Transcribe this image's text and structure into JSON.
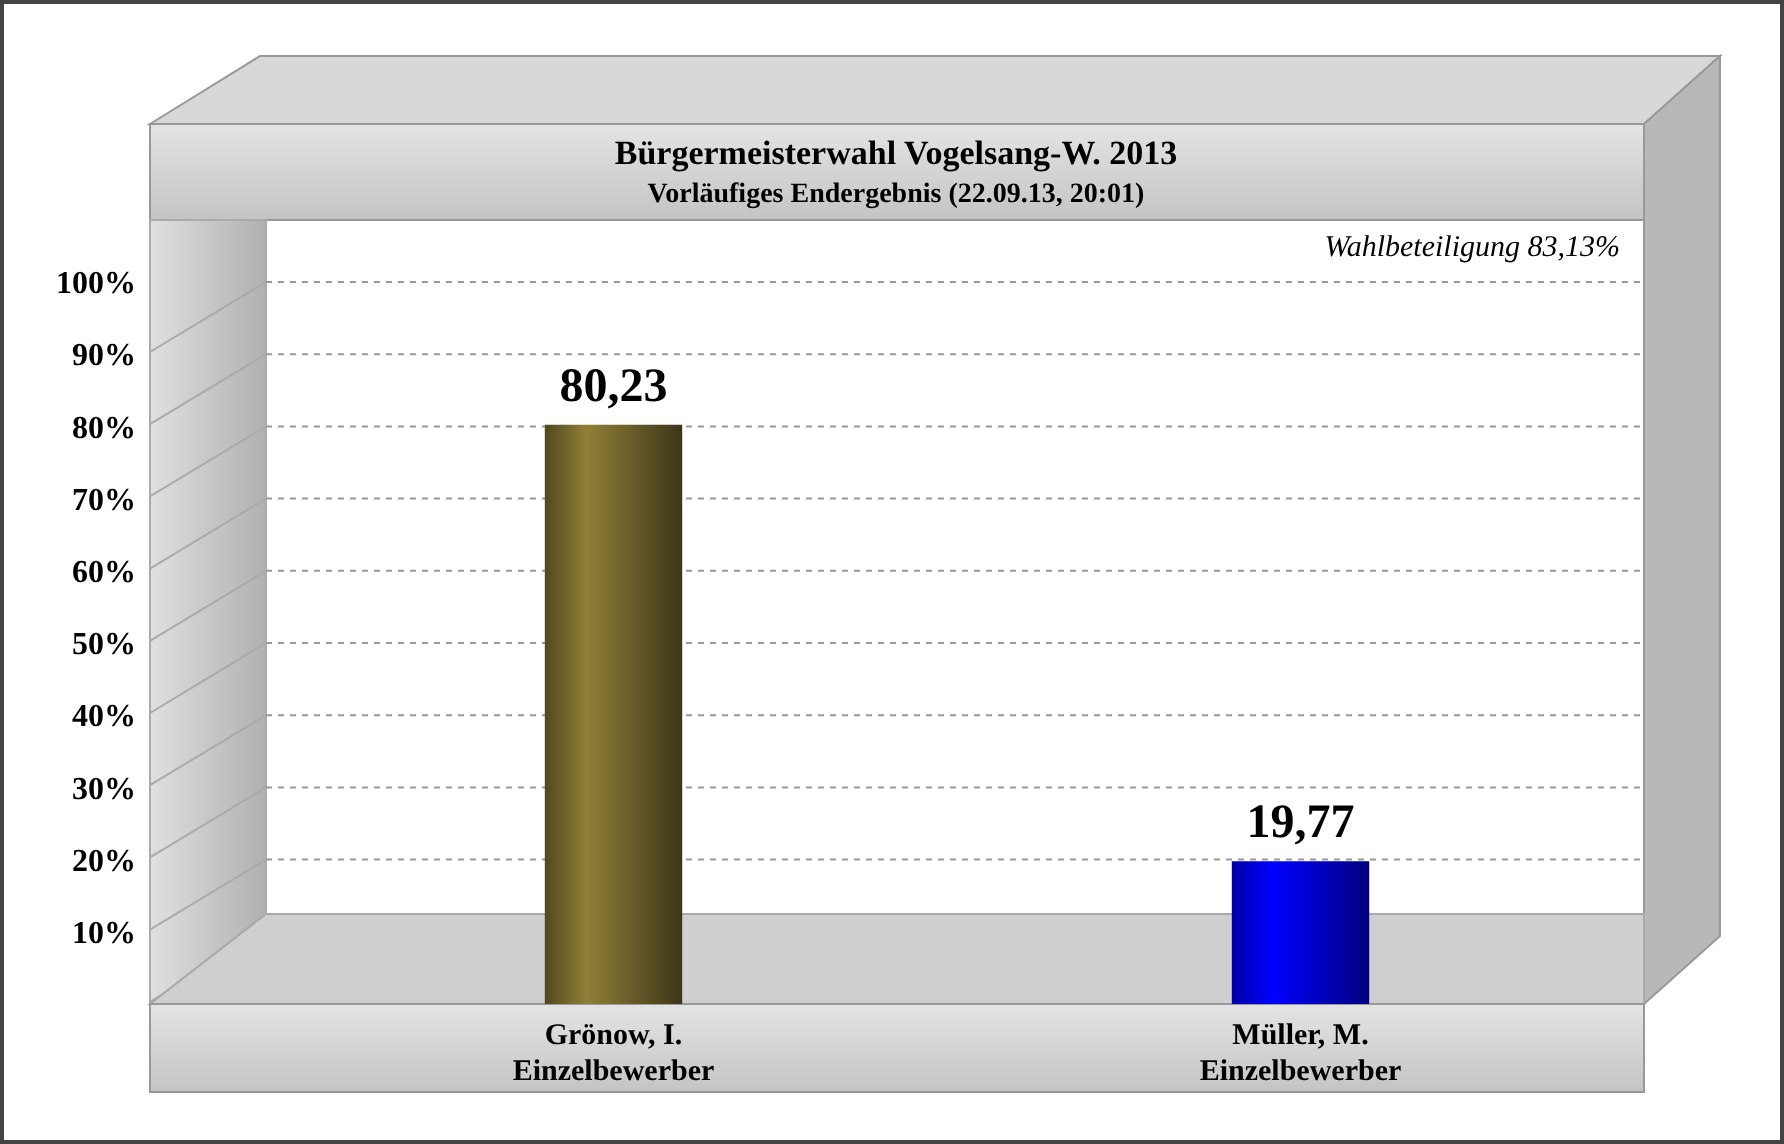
{
  "chart_data": {
    "type": "bar",
    "title": "Bürgermeisterwahl Vogelsang-W. 2013",
    "subtitle": "Vorläufiges Endergebnis (22.09.13, 20:01)",
    "annotations": [
      "Wahlbeteiligung 83,13%"
    ],
    "categories": [
      "Grönow, I.\nEinzelbewerber",
      "Müller, M.\nEinzelbewerber"
    ],
    "values": [
      80.23,
      19.77
    ],
    "colors": [
      "#7d6e30",
      "#0000ff"
    ],
    "value_labels": [
      "80,23",
      "19,77"
    ],
    "ylim": [
      0,
      100
    ],
    "yticks": [
      {
        "value": 10,
        "label": "10%"
      },
      {
        "value": 20,
        "label": "20%"
      },
      {
        "value": 30,
        "label": "30%"
      },
      {
        "value": 40,
        "label": "40%"
      },
      {
        "value": 50,
        "label": "50%"
      },
      {
        "value": 60,
        "label": "60%"
      },
      {
        "value": 70,
        "label": "70%"
      },
      {
        "value": 80,
        "label": "80%"
      },
      {
        "value": 90,
        "label": "90%"
      },
      {
        "value": 100,
        "label": "100%"
      }
    ],
    "grid": "y"
  }
}
